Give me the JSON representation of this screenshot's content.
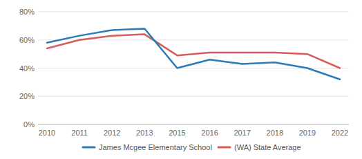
{
  "chart_data": {
    "type": "line",
    "categories": [
      "2010",
      "2011",
      "2012",
      "2013",
      "2015",
      "2016",
      "2017",
      "2018",
      "2019",
      "2022"
    ],
    "series": [
      {
        "name": "James Mcgee Elementary School",
        "color": "#2b7bb9",
        "values": [
          58,
          63,
          67,
          68,
          40,
          46,
          43,
          44,
          40,
          32
        ]
      },
      {
        "name": "(WA) State Average",
        "color": "#d95b5b",
        "values": [
          54,
          60,
          63,
          64,
          49,
          51,
          51,
          51,
          50,
          40
        ]
      }
    ],
    "ylim": [
      0,
      80
    ],
    "yticks": [
      {
        "value": 0,
        "label": "0%"
      },
      {
        "value": 20,
        "label": "20%"
      },
      {
        "value": 40,
        "label": "40%"
      },
      {
        "value": 60,
        "label": "60%"
      },
      {
        "value": 80,
        "label": "80%"
      }
    ],
    "grid": true,
    "legend": "bottom"
  }
}
